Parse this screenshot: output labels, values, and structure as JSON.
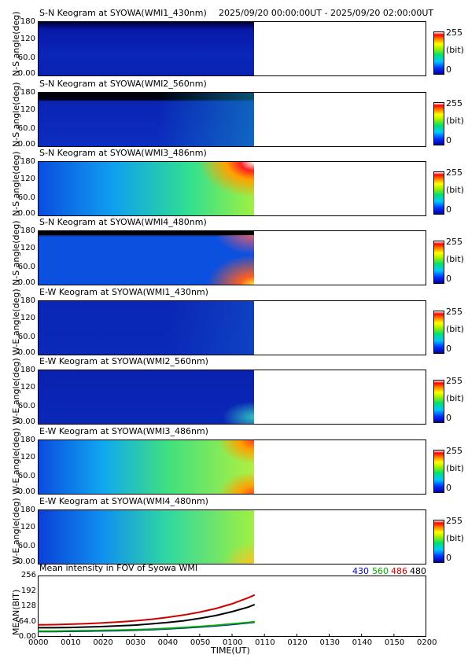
{
  "header": {
    "range": "2025/09/20 00:00:00UT - 2025/09/20 02:00:00UT"
  },
  "colors": {
    "c430": "#0000cc",
    "c560": "#00aa00",
    "c486": "#cc0000",
    "c480": "#000000"
  },
  "keograms": [
    {
      "title": "S-N Keogram at SYOWA(WMI1_430nm)",
      "ylabel": "N-S angle(deg)",
      "colorbar_max": "255",
      "colorbar_unit": "(bit)",
      "colorbar_min": "0",
      "yticks": [
        "180",
        "120",
        "60.0",
        "0.00"
      ]
    },
    {
      "title": "S-N Keogram at SYOWA(WMI2_560nm)",
      "ylabel": "N-S angle(deg)",
      "colorbar_max": "255",
      "colorbar_unit": "(bit)",
      "colorbar_min": "0",
      "yticks": [
        "180",
        "120",
        "60.0",
        "0.00"
      ]
    },
    {
      "title": "S-N Keogram at SYOWA(WMI3_486nm)",
      "ylabel": "N-S angle(deg)",
      "colorbar_max": "255",
      "colorbar_unit": "(bit)",
      "colorbar_min": "0",
      "yticks": [
        "180",
        "120",
        "60.0",
        "0.00"
      ]
    },
    {
      "title": "S-N Keogram at SYOWA(WMI4_480nm)",
      "ylabel": "N-S angle(deg)",
      "colorbar_max": "255",
      "colorbar_unit": "(bit)",
      "colorbar_min": "0",
      "yticks": [
        "180",
        "120",
        "60.0",
        "0.00"
      ]
    },
    {
      "title": "E-W Keogram at SYOWA(WMI1_430nm)",
      "ylabel": "W-E angle(deg)",
      "colorbar_max": "255",
      "colorbar_unit": "(bit)",
      "colorbar_min": "0",
      "yticks": [
        "180",
        "120",
        "60.0",
        "0.00"
      ]
    },
    {
      "title": "E-W Keogram at SYOWA(WMI2_560nm)",
      "ylabel": "W-E angle(deg)",
      "colorbar_max": "255",
      "colorbar_unit": "(bit)",
      "colorbar_min": "0",
      "yticks": [
        "180",
        "120",
        "60.0",
        "0.00"
      ]
    },
    {
      "title": "E-W Keogram at SYOWA(WMI3_486nm)",
      "ylabel": "W-E angle(deg)",
      "colorbar_max": "255",
      "colorbar_unit": "(bit)",
      "colorbar_min": "0",
      "yticks": [
        "180",
        "120",
        "60.0",
        "0.00"
      ]
    },
    {
      "title": "E-W Keogram at SYOWA(WMI4_480nm)",
      "ylabel": "W-E angle(deg)",
      "colorbar_max": "255",
      "colorbar_unit": "(bit)",
      "colorbar_min": "0",
      "yticks": [
        "180",
        "120",
        "60.0",
        "0.00"
      ]
    }
  ],
  "mean_panel": {
    "title": "Mean intensity in FOV of Syowa WMI",
    "ylabel": "MEAN(BIT)",
    "xlabel": "TIME(UT)",
    "yticks": [
      "256",
      "192",
      "128",
      "64.0",
      "0.00"
    ],
    "legend": [
      "430",
      "560",
      "486",
      "480"
    ]
  },
  "chart_data": {
    "type": "line",
    "title": "Mean intensity in FOV of Syowa WMI",
    "xlabel": "TIME(UT)",
    "ylabel": "MEAN(BIT)",
    "xlim": [
      0,
      120
    ],
    "ylim": [
      0,
      256
    ],
    "x_tick_labels": [
      "0000",
      "0010",
      "0020",
      "0030",
      "0040",
      "0050",
      "0100",
      "0110",
      "0120",
      "0130",
      "0140",
      "0150",
      "0200"
    ],
    "x": [
      0,
      5,
      10,
      15,
      20,
      25,
      30,
      35,
      40,
      45,
      50,
      55,
      60,
      65,
      67
    ],
    "series": [
      {
        "name": "430",
        "color": "#0000cc",
        "values": [
          22,
          22,
          23,
          24,
          25,
          26,
          28,
          30,
          33,
          37,
          41,
          46,
          52,
          58,
          61
        ]
      },
      {
        "name": "560",
        "color": "#00aa00",
        "values": [
          24,
          24,
          25,
          26,
          27,
          28,
          30,
          32,
          35,
          39,
          43,
          48,
          54,
          60,
          63
        ]
      },
      {
        "name": "486",
        "color": "#cc0000",
        "values": [
          50,
          51,
          53,
          55,
          58,
          62,
          67,
          73,
          81,
          91,
          103,
          118,
          138,
          163,
          175
        ]
      },
      {
        "name": "480",
        "color": "#000000",
        "values": [
          38,
          38,
          39,
          41,
          43,
          46,
          49,
          54,
          60,
          67,
          77,
          89,
          105,
          124,
          135
        ]
      }
    ]
  }
}
